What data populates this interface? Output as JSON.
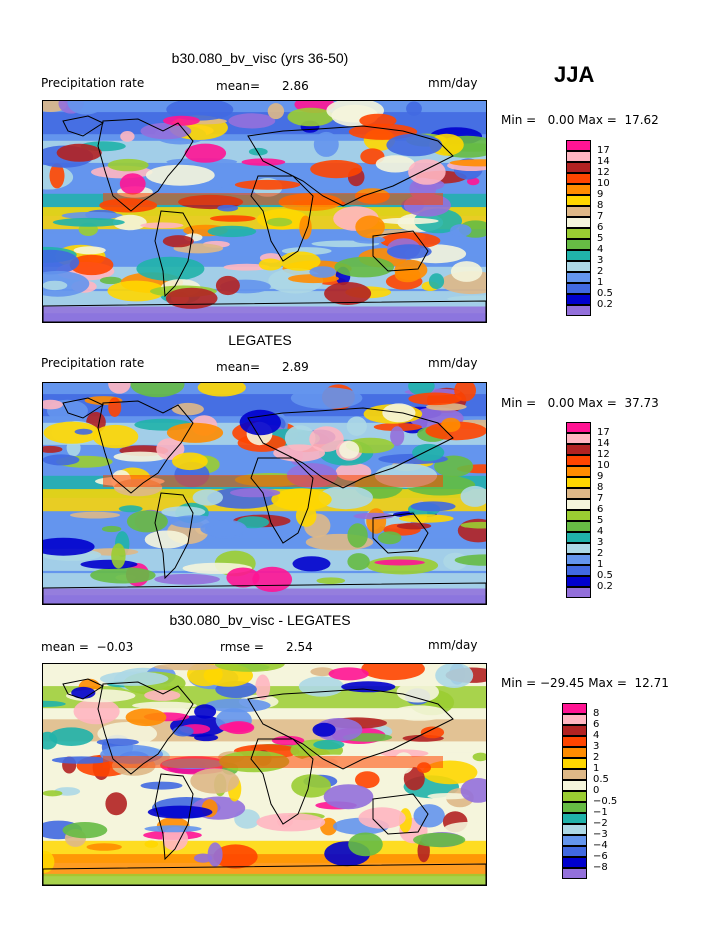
{
  "season": "JJA",
  "panels": [
    {
      "title": "b30.080_bv_visc (yrs 36-50)",
      "left_text": "Precipitation rate",
      "mean_label": "mean=",
      "mean_value": "2.86",
      "right_text": "mm/day",
      "minmax": "Min =   0.00 Max =  17.62",
      "legend_labels": [
        "17",
        "14",
        "12",
        "10",
        "9",
        "8",
        "7",
        "6",
        "5",
        "4",
        "3",
        "2",
        "1",
        "0.5",
        "0.2"
      ],
      "legend_colors": [
        "#ff1493",
        "#ffb6c1",
        "#b22222",
        "#ff4500",
        "#ff8c00",
        "#ffd700",
        "#deb887",
        "#f5f5dc",
        "#9acd32",
        "#66bb44",
        "#20b2aa",
        "#add8e6",
        "#6495ed",
        "#4169e1",
        "#0000cd",
        "#9370db"
      ]
    },
    {
      "title": "LEGATES",
      "left_text": "Precipitation rate",
      "mean_label": "mean=",
      "mean_value": "2.89",
      "right_text": "mm/day",
      "minmax": "Min =   0.00 Max =  37.73",
      "legend_labels": [
        "17",
        "14",
        "12",
        "10",
        "9",
        "8",
        "7",
        "6",
        "5",
        "4",
        "3",
        "2",
        "1",
        "0.5",
        "0.2"
      ],
      "legend_colors": [
        "#ff1493",
        "#ffb6c1",
        "#b22222",
        "#ff4500",
        "#ff8c00",
        "#ffd700",
        "#deb887",
        "#f5f5dc",
        "#9acd32",
        "#66bb44",
        "#20b2aa",
        "#add8e6",
        "#6495ed",
        "#4169e1",
        "#0000cd",
        "#9370db"
      ]
    },
    {
      "title": "b30.080_bv_visc - LEGATES",
      "left_text": "mean =  −0.03",
      "mean_label": "rmse =",
      "mean_value": "2.54",
      "right_text": "mm/day",
      "minmax": "Min = −29.45 Max =  12.71",
      "legend_labels": [
        "8",
        "6",
        "4",
        "3",
        "2",
        "1",
        "0.5",
        "0",
        "−0.5",
        "−1",
        "−2",
        "−3",
        "−4",
        "−6",
        "−8"
      ],
      "legend_colors": [
        "#ff1493",
        "#ffb6c1",
        "#b22222",
        "#ff4500",
        "#ff8c00",
        "#ffd700",
        "#deb887",
        "#f5f5dc",
        "#9acd32",
        "#66bb44",
        "#20b2aa",
        "#add8e6",
        "#6495ed",
        "#4169e1",
        "#0000cd",
        "#9370db"
      ]
    }
  ]
}
